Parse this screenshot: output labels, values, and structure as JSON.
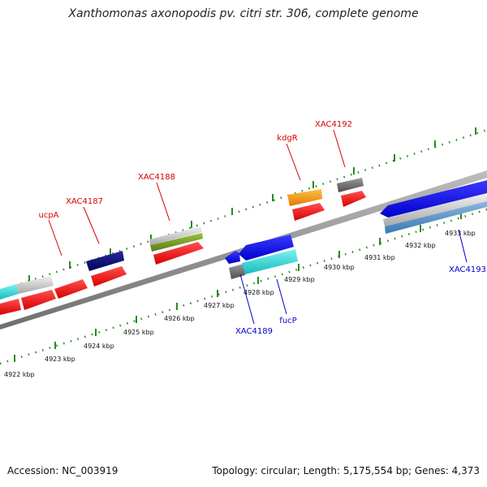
{
  "title": "Xanthomonas axonopodis pv. citri str. 306, complete genome",
  "footer": {
    "accession": "Accession: NC_003919",
    "stats": "Topology: circular; Length: 5,175,554 bp; Genes: 4,373"
  },
  "ticks": [
    "4922 kbp",
    "4923 kbp",
    "4924 kbp",
    "4925 kbp",
    "4926 kbp",
    "4927 kbp",
    "4928 kbp",
    "4929 kbp",
    "4930 kbp",
    "4931 kbp",
    "4932 kbp",
    "4933 kbp"
  ],
  "colors": {
    "forward_label": "#d40000",
    "reverse_label": "#0000cc",
    "tick": "#2a8a22",
    "backbone": "#808080"
  },
  "gene_labels": {
    "ucpA": "ucpA",
    "xac4187": "XAC4187",
    "xac4188": "XAC4188",
    "kdgR": "kdgR",
    "xac4192": "XAC4192",
    "xac4189": "XAC4189",
    "fucP": "fucP",
    "xac4193": "XAC4193"
  }
}
